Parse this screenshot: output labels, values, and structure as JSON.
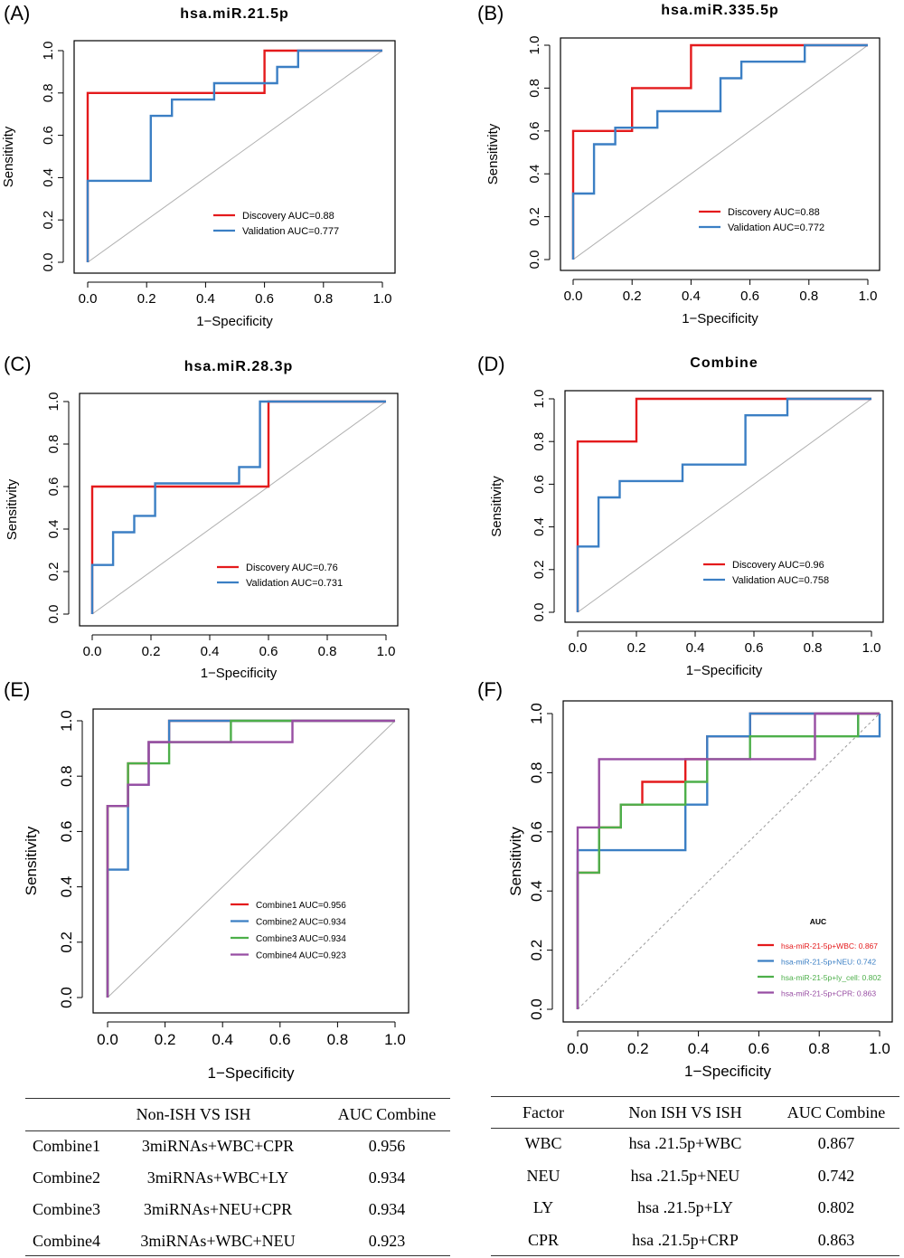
{
  "panels": [
    {
      "letter": "(A)"
    },
    {
      "letter": "(B)"
    },
    {
      "letter": "(C)"
    },
    {
      "letter": "(D)"
    },
    {
      "letter": "(E)"
    },
    {
      "letter": "(F)"
    }
  ],
  "chart_data": [
    {
      "type": "line",
      "title": "hsa.miR.21.5p",
      "xlabel": "1−Specificity",
      "ylabel": "Sensitivity",
      "xlim": [
        0,
        1
      ],
      "ylim": [
        0,
        1
      ],
      "xticks": [
        "0.0",
        "0.2",
        "0.4",
        "0.6",
        "0.8",
        "1.0"
      ],
      "yticks": [
        "0.0",
        "0.2",
        "0.4",
        "0.6",
        "0.8",
        "1.0"
      ],
      "legend_position": "bottom-right",
      "series": [
        {
          "name": "Discovery AUC=0.88",
          "color": "#e41a1c",
          "x": [
            0,
            0,
            0,
            0.6,
            0.6,
            1.0
          ],
          "y": [
            0,
            0.4,
            0.8,
            0.8,
            1.0,
            1.0
          ]
        },
        {
          "name": "Validation AUC=0.777",
          "color": "#3b7fc4",
          "x": [
            0,
            0,
            0.214,
            0.214,
            0.286,
            0.286,
            0.429,
            0.429,
            0.571,
            0.571,
            0.643,
            0.643,
            0.714,
            0.714,
            1.0
          ],
          "y": [
            0,
            0.385,
            0.385,
            0.692,
            0.692,
            0.769,
            0.769,
            0.846,
            0.846,
            0.846,
            0.846,
            0.923,
            0.923,
            1.0,
            1.0
          ]
        }
      ]
    },
    {
      "type": "line",
      "title": "hsa.miR.335.5p",
      "xlabel": "1−Specificity",
      "ylabel": "Sensitivity",
      "xlim": [
        0,
        1
      ],
      "ylim": [
        0,
        1
      ],
      "xticks": [
        "0.0",
        "0.2",
        "0.4",
        "0.6",
        "0.8",
        "1.0"
      ],
      "yticks": [
        "0.0",
        "0.2",
        "0.4",
        "0.6",
        "0.8",
        "1.0"
      ],
      "legend_position": "bottom-right",
      "series": [
        {
          "name": "Discovery AUC=0.88",
          "color": "#e41a1c",
          "x": [
            0,
            0,
            0,
            0.2,
            0.2,
            0.4,
            0.4,
            1.0
          ],
          "y": [
            0,
            0.3,
            0.6,
            0.6,
            0.8,
            0.8,
            1.0,
            1.0
          ]
        },
        {
          "name": "Validation AUC=0.772",
          "color": "#3b7fc4",
          "x": [
            0,
            0,
            0.071,
            0.071,
            0.143,
            0.143,
            0.286,
            0.286,
            0.5,
            0.5,
            0.571,
            0.571,
            0.714,
            0.786,
            0.786,
            1.0
          ],
          "y": [
            0,
            0.308,
            0.308,
            0.538,
            0.538,
            0.615,
            0.615,
            0.692,
            0.692,
            0.846,
            0.846,
            0.923,
            0.923,
            0.923,
            1.0,
            1.0
          ]
        }
      ]
    },
    {
      "type": "line",
      "title": "hsa.miR.28.3p",
      "xlabel": "1−Specificity",
      "ylabel": "Sensitivity",
      "xlim": [
        0,
        1
      ],
      "ylim": [
        0,
        1
      ],
      "xticks": [
        "0.0",
        "0.2",
        "0.4",
        "0.6",
        "0.8",
        "1.0"
      ],
      "yticks": [
        "0.0",
        "0.2",
        "0.4",
        "0.6",
        "0.8",
        "1.0"
      ],
      "legend_position": "bottom-right",
      "series": [
        {
          "name": "Discovery  AUC=0.76",
          "color": "#e41a1c",
          "x": [
            0,
            0,
            0,
            0.6,
            0.6,
            1.0
          ],
          "y": [
            0,
            0.2,
            0.6,
            0.6,
            1.0,
            1.0
          ]
        },
        {
          "name": "Validation AUC=0.731",
          "color": "#3b7fc4",
          "x": [
            0,
            0,
            0.071,
            0.071,
            0.143,
            0.143,
            0.214,
            0.214,
            0.5,
            0.5,
            0.571,
            0.571,
            1.0
          ],
          "y": [
            0,
            0.231,
            0.231,
            0.385,
            0.385,
            0.462,
            0.462,
            0.615,
            0.615,
            0.692,
            0.692,
            1.0,
            1.0
          ]
        }
      ]
    },
    {
      "type": "line",
      "title": "Combine",
      "xlabel": "1−Specificity",
      "ylabel": "Sensitivity",
      "xlim": [
        0,
        1
      ],
      "ylim": [
        0,
        1
      ],
      "xticks": [
        "0.0",
        "0.2",
        "0.4",
        "0.6",
        "0.8",
        "1.0"
      ],
      "yticks": [
        "0.0",
        "0.2",
        "0.4",
        "0.6",
        "0.8",
        "1.0"
      ],
      "legend_position": "bottom-right",
      "series": [
        {
          "name": "Discovery AUC=0.96",
          "color": "#e41a1c",
          "x": [
            0,
            0,
            0,
            0.2,
            0.2,
            1.0
          ],
          "y": [
            0,
            0.3,
            0.8,
            0.8,
            1.0,
            1.0
          ]
        },
        {
          "name": "Validation AUC=0.758",
          "color": "#3b7fc4",
          "x": [
            0,
            0,
            0.071,
            0.071,
            0.143,
            0.143,
            0.357,
            0.357,
            0.571,
            0.571,
            0.714,
            0.714,
            1.0
          ],
          "y": [
            0,
            0.308,
            0.308,
            0.538,
            0.538,
            0.615,
            0.615,
            0.692,
            0.692,
            0.923,
            0.923,
            1.0,
            1.0
          ]
        }
      ]
    },
    {
      "type": "line",
      "title": "",
      "xlabel": "1−Specificity",
      "ylabel": "Sensitivity",
      "xlim": [
        0,
        1
      ],
      "ylim": [
        0,
        1
      ],
      "xticks": [
        "0.0",
        "0.2",
        "0.4",
        "0.6",
        "0.8",
        "1.0"
      ],
      "yticks": [
        "0.0",
        "0.2",
        "0.4",
        "0.6",
        "0.8",
        "1.0"
      ],
      "legend_position": "bottom-right",
      "series": [
        {
          "name": "Combine1 AUC=0.956",
          "color": "#e41a1c",
          "x": [
            0,
            0,
            0.071,
            0.071,
            0.143,
            0.143,
            0.214,
            0.214,
            1.0
          ],
          "y": [
            0,
            0.692,
            0.692,
            0.846,
            0.846,
            0.923,
            0.923,
            1.0,
            1.0
          ]
        },
        {
          "name": "Combine2 AUC=0.934",
          "color": "#3b7fc4",
          "x": [
            0,
            0,
            0.071,
            0.071,
            0.143,
            0.143,
            0.214,
            0.214,
            1.0
          ],
          "y": [
            0,
            0.462,
            0.462,
            0.769,
            0.769,
            0.923,
            0.923,
            1.0,
            1.0
          ]
        },
        {
          "name": "Combine3 AUC=0.934",
          "color": "#4daf4a",
          "x": [
            0,
            0,
            0.071,
            0.071,
            0.214,
            0.214,
            0.429,
            0.429,
            1.0
          ],
          "y": [
            0,
            0.692,
            0.692,
            0.846,
            0.846,
            0.923,
            0.923,
            1.0,
            1.0
          ]
        },
        {
          "name": "Combine4 AUC=0.923",
          "color": "#984ea3",
          "x": [
            0,
            0,
            0.071,
            0.071,
            0.143,
            0.143,
            0.643,
            0.643,
            1.0
          ],
          "y": [
            0,
            0.692,
            0.692,
            0.769,
            0.769,
            0.923,
            0.923,
            1.0,
            1.0
          ]
        }
      ]
    },
    {
      "type": "line",
      "title": "",
      "xlabel": "1−Specificity",
      "ylabel": "Sensitivity",
      "xlim": [
        0,
        1
      ],
      "ylim": [
        0,
        1
      ],
      "xticks": [
        "0.0",
        "0.2",
        "0.4",
        "0.6",
        "0.8",
        "1.0"
      ],
      "yticks": [
        "0.0",
        "0.2",
        "0.4",
        "0.6",
        "0.8",
        "1.0"
      ],
      "legend_title": "AUC",
      "legend_position": "bottom-right",
      "series": [
        {
          "name": "hsa-miR-21-5p+WBC: 0.867",
          "color": "#e41a1c",
          "x": [
            0,
            0,
            0.071,
            0.071,
            0.143,
            0.143,
            0.214,
            0.214,
            0.357,
            0.357,
            0.429,
            0.429,
            0.571,
            0.571,
            1.0
          ],
          "y": [
            0,
            0.462,
            0.462,
            0.615,
            0.615,
            0.692,
            0.692,
            0.769,
            0.769,
            0.846,
            0.846,
            0.923,
            0.923,
            1.0,
            1.0
          ]
        },
        {
          "name": "hsa-miR-21-5p+NEU: 0.742",
          "color": "#3b7fc4",
          "x": [
            0,
            0,
            0.357,
            0.357,
            0.429,
            0.429,
            0.571,
            0.571,
            0.929,
            0.929,
            1.0,
            1.0
          ],
          "y": [
            0,
            0.538,
            0.538,
            0.692,
            0.692,
            0.923,
            0.923,
            1.0,
            1.0,
            0.923,
            0.923,
            1.0
          ]
        },
        {
          "name": "hsa-miR-21-5p+ly_cell: 0.802",
          "color": "#4daf4a",
          "x": [
            0,
            0,
            0.071,
            0.071,
            0.143,
            0.143,
            0.357,
            0.357,
            0.429,
            0.429,
            0.571,
            0.571,
            0.929,
            0.929,
            1.0
          ],
          "y": [
            0,
            0.462,
            0.462,
            0.615,
            0.615,
            0.692,
            0.692,
            0.769,
            0.769,
            0.846,
            0.846,
            0.923,
            0.923,
            1.0,
            1.0
          ]
        },
        {
          "name": "hsa-miR-21-5p+CPR: 0.863",
          "color": "#984ea3",
          "x": [
            0,
            0,
            0.071,
            0.071,
            0.786,
            0.786,
            1.0
          ],
          "y": [
            0,
            0.615,
            0.615,
            0.846,
            0.846,
            1.0,
            1.0
          ]
        }
      ]
    }
  ],
  "table_left": {
    "headers": [
      "Non-ISH  VS   ISH",
      "AUC Combine"
    ],
    "rows": [
      [
        "Combine1",
        "3miRNAs+WBC+CPR",
        "0.956"
      ],
      [
        "Combine2",
        "3miRNAs+WBC+LY",
        "0.934"
      ],
      [
        "Combine3",
        "3miRNAs+NEU+CPR",
        "0.934"
      ],
      [
        "Combine4",
        "3miRNAs+WBC+NEU",
        "0.923"
      ]
    ]
  },
  "table_right": {
    "headers": [
      "Factor",
      "Non ISH VS ISH",
      "AUC Combine"
    ],
    "rows": [
      [
        "WBC",
        "hsa .21.5p+WBC",
        "0.867"
      ],
      [
        "NEU",
        "hsa .21.5p+NEU",
        "0.742"
      ],
      [
        "LY",
        "hsa .21.5p+LY",
        "0.802"
      ],
      [
        "CPR",
        "hsa .21.5p+CRP",
        "0.863"
      ]
    ]
  }
}
